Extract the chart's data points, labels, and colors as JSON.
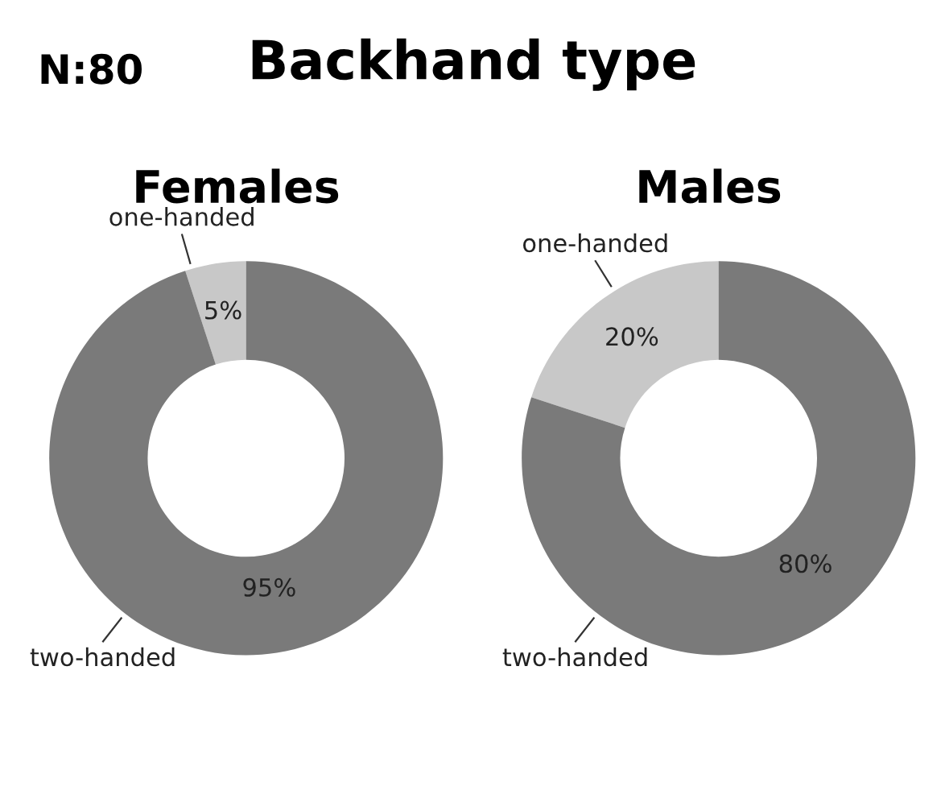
{
  "chart_data": [
    {
      "type": "donut",
      "title": "Females",
      "annotations": [
        "N:80",
        "Backhand type"
      ],
      "categories": [
        "one-handed",
        "two-handed"
      ],
      "values": [
        5,
        95
      ],
      "value_labels": [
        "5%",
        "95%"
      ],
      "colors": [
        "#c8c8c8",
        "#7a7a7a"
      ]
    },
    {
      "type": "donut",
      "title": "Males",
      "categories": [
        "one-handed",
        "two-handed"
      ],
      "values": [
        20,
        80
      ],
      "value_labels": [
        "20%",
        "80%"
      ],
      "colors": [
        "#c8c8c8",
        "#7a7a7a"
      ]
    }
  ]
}
